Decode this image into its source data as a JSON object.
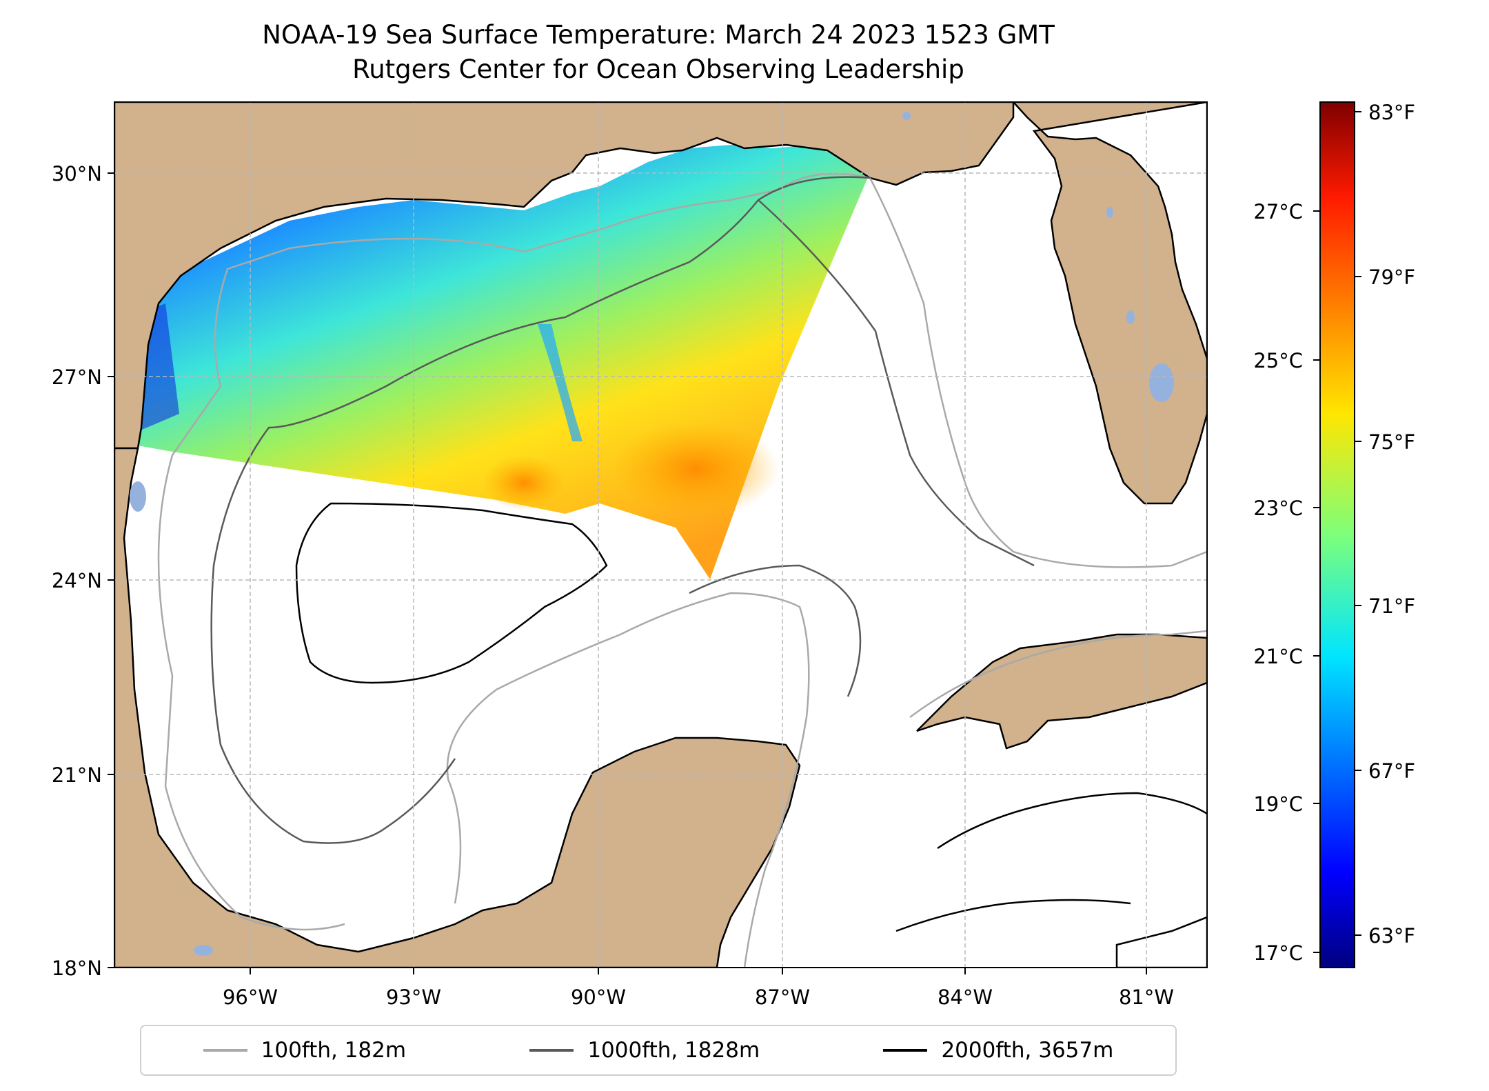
{
  "map": {
    "title_line1": "NOAA-19 Sea Surface Temperature: March 24 2023 1523 GMT",
    "title_line2": "Rutgers Center for Ocean Observing Leadership",
    "lat_labels": [
      "30°N",
      "27°N",
      "24°N",
      "21°N",
      "18°N"
    ],
    "lon_labels": [
      "96°W",
      "93°W",
      "90°W",
      "87°W",
      "84°W",
      "81°W"
    ],
    "colors": {
      "land": "#d1b28c",
      "lake": "#95b2df",
      "contour_100": "#a9a9a9",
      "contour_1000": "#595959",
      "contour_2000": "#000000",
      "grid": "#b8b8b8"
    }
  },
  "colorbar": {
    "celsius_labels": [
      "27°C",
      "25°C",
      "23°C",
      "21°C",
      "19°C",
      "17°C"
    ],
    "fahrenheit_labels": [
      "83°F",
      "79°F",
      "75°F",
      "71°F",
      "67°F",
      "63°F"
    ],
    "colormap": "jet",
    "range_c": [
      16.8,
      28.5
    ]
  },
  "legend": [
    {
      "label": "100fth, 182m",
      "color": "#a9a9a9"
    },
    {
      "label": "1000fth, 1828m",
      "color": "#595959"
    },
    {
      "label": "2000fth, 3657m",
      "color": "#000000"
    }
  ]
}
